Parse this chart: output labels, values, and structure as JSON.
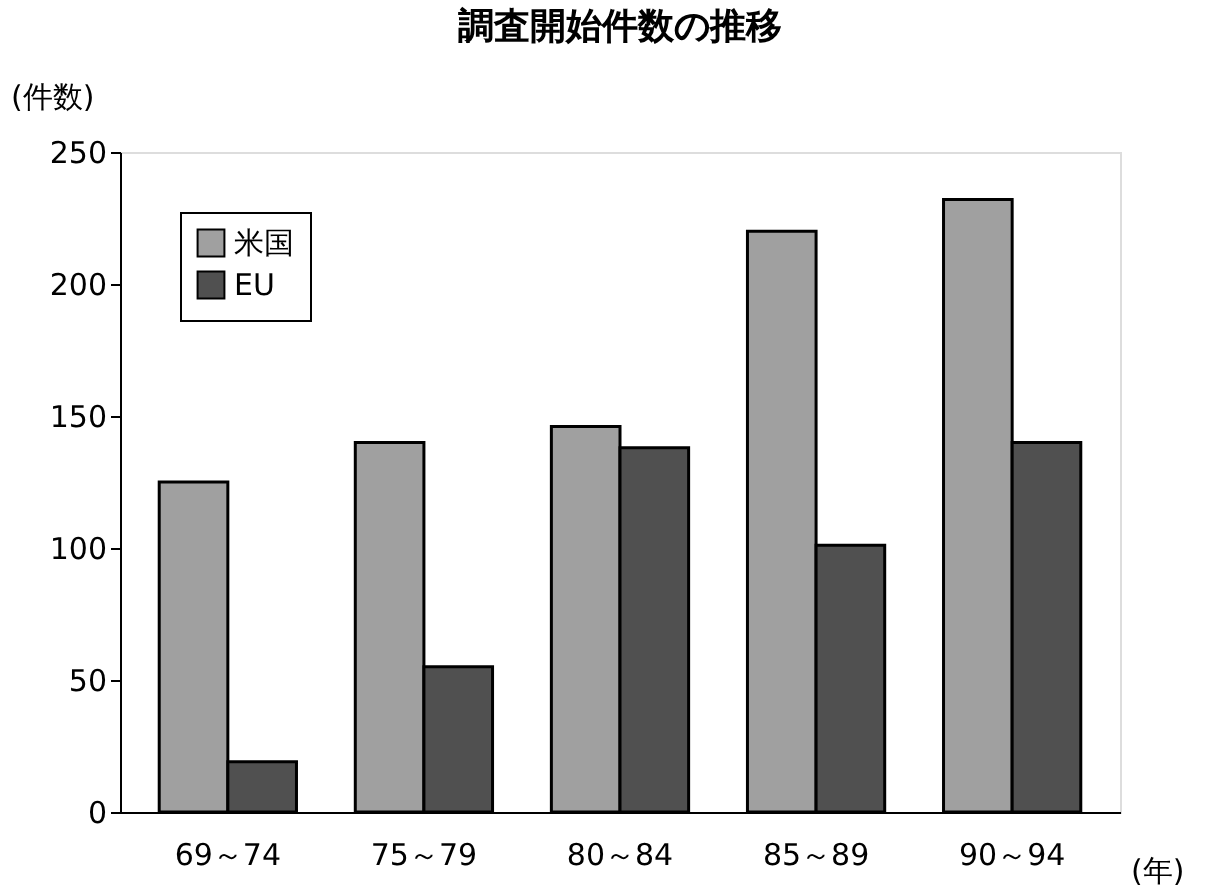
{
  "chart_data": {
    "type": "bar",
    "title": "調査開始件数の推移",
    "ylabel": "(件数)",
    "xlabel": "(年)",
    "categories": [
      "69～74",
      "75～79",
      "80～84",
      "85～89",
      "90～94"
    ],
    "series": [
      {
        "name": "米国",
        "color": "#a0a0a0",
        "values": [
          125,
          140,
          146,
          220,
          232
        ]
      },
      {
        "name": "EU",
        "color": "#505050",
        "values": [
          19,
          55,
          138,
          101,
          140
        ]
      }
    ],
    "ylim": [
      0,
      250
    ],
    "yticks": [
      0,
      50,
      100,
      150,
      200,
      250
    ],
    "grid": false,
    "legend": "top left"
  }
}
